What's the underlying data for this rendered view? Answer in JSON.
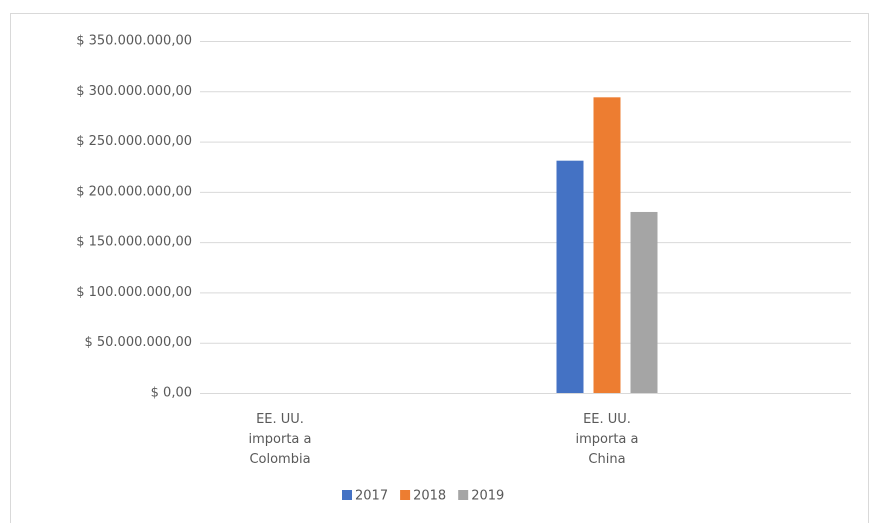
{
  "chart_data": {
    "type": "bar",
    "categories": [
      "EE. UU. importa a Colombia",
      "EE. UU. importa a China"
    ],
    "series": [
      {
        "name": "2017",
        "color": "#4472c4",
        "values": [
          0,
          231000000
        ]
      },
      {
        "name": "2018",
        "color": "#ed7d31",
        "values": [
          0,
          294000000
        ]
      },
      {
        "name": "2019",
        "color": "#a5a5a5",
        "values": [
          0,
          180000000
        ]
      }
    ],
    "ylim": [
      0,
      350000000
    ],
    "yticks": [
      {
        "value": 0,
        "label": "$ 0,00"
      },
      {
        "value": 50000000,
        "label": "$ 50.000.000,00"
      },
      {
        "value": 100000000,
        "label": "$ 100.000.000,00"
      },
      {
        "value": 150000000,
        "label": "$ 150.000.000,00"
      },
      {
        "value": 200000000,
        "label": "$ 200.000.000,00"
      },
      {
        "value": 250000000,
        "label": "$ 250.000.000,00"
      },
      {
        "value": 300000000,
        "label": "$ 300.000.000,00"
      },
      {
        "value": 350000000,
        "label": "$ 350.000.000,00"
      }
    ],
    "grid": true,
    "legend": "bottom"
  }
}
